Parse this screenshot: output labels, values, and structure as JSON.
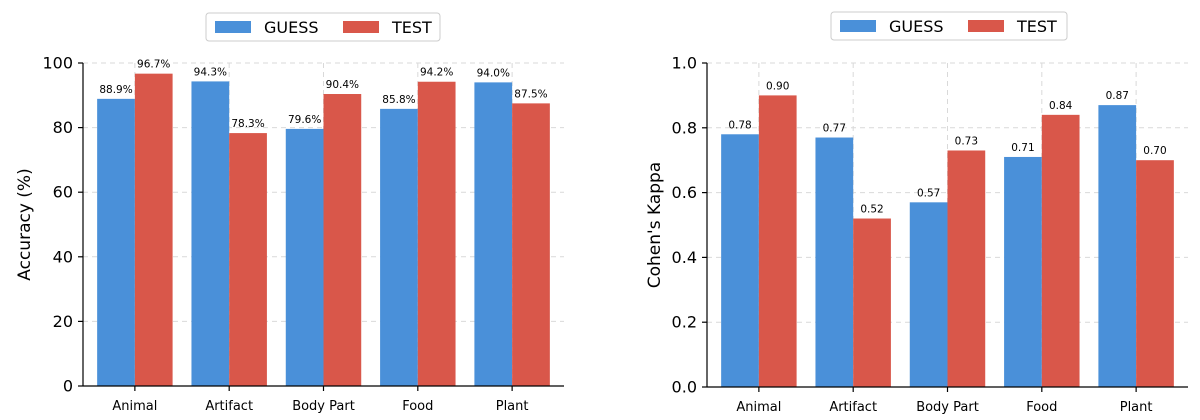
{
  "chart_data": [
    {
      "type": "bar",
      "categories": [
        "Animal",
        "Artifact",
        "Body Part",
        "Food",
        "Plant"
      ],
      "series": [
        {
          "name": "GUESS",
          "values": [
            88.9,
            94.3,
            79.6,
            85.8,
            94.0
          ],
          "labels": [
            "88.9%",
            "94.3%",
            "79.6%",
            "85.8%",
            "94.0%"
          ]
        },
        {
          "name": "TEST",
          "values": [
            96.7,
            78.3,
            90.4,
            94.2,
            87.5
          ],
          "labels": [
            "96.7%",
            "78.3%",
            "90.4%",
            "94.2%",
            "87.5%"
          ]
        }
      ],
      "xlabel": "",
      "ylabel": "Accuracy (%)",
      "ylim": [
        0,
        100
      ],
      "yticks": [
        0,
        20,
        40,
        60,
        80,
        100
      ],
      "ytick_labels": [
        "0",
        "20",
        "40",
        "60",
        "80",
        "100"
      ],
      "grid": true,
      "legend": "top-center"
    },
    {
      "type": "bar",
      "categories": [
        "Animal",
        "Artifact",
        "Body Part",
        "Food",
        "Plant"
      ],
      "series": [
        {
          "name": "GUESS",
          "values": [
            0.78,
            0.77,
            0.57,
            0.71,
            0.87
          ],
          "labels": [
            "0.78",
            "0.77",
            "0.57",
            "0.71",
            "0.87"
          ]
        },
        {
          "name": "TEST",
          "values": [
            0.9,
            0.52,
            0.73,
            0.84,
            0.7
          ],
          "labels": [
            "0.90",
            "0.52",
            "0.73",
            "0.84",
            "0.70"
          ]
        }
      ],
      "xlabel": "",
      "ylabel": "Cohen's Kappa",
      "ylim": [
        0,
        1.0
      ],
      "yticks": [
        0,
        0.2,
        0.4,
        0.6,
        0.8,
        1.0
      ],
      "ytick_labels": [
        "0.0",
        "0.2",
        "0.4",
        "0.6",
        "0.8",
        "1.0"
      ],
      "grid": true,
      "legend": "top-center"
    }
  ],
  "colors": {
    "GUESS": "#4a90d9",
    "TEST": "#d9574a"
  }
}
